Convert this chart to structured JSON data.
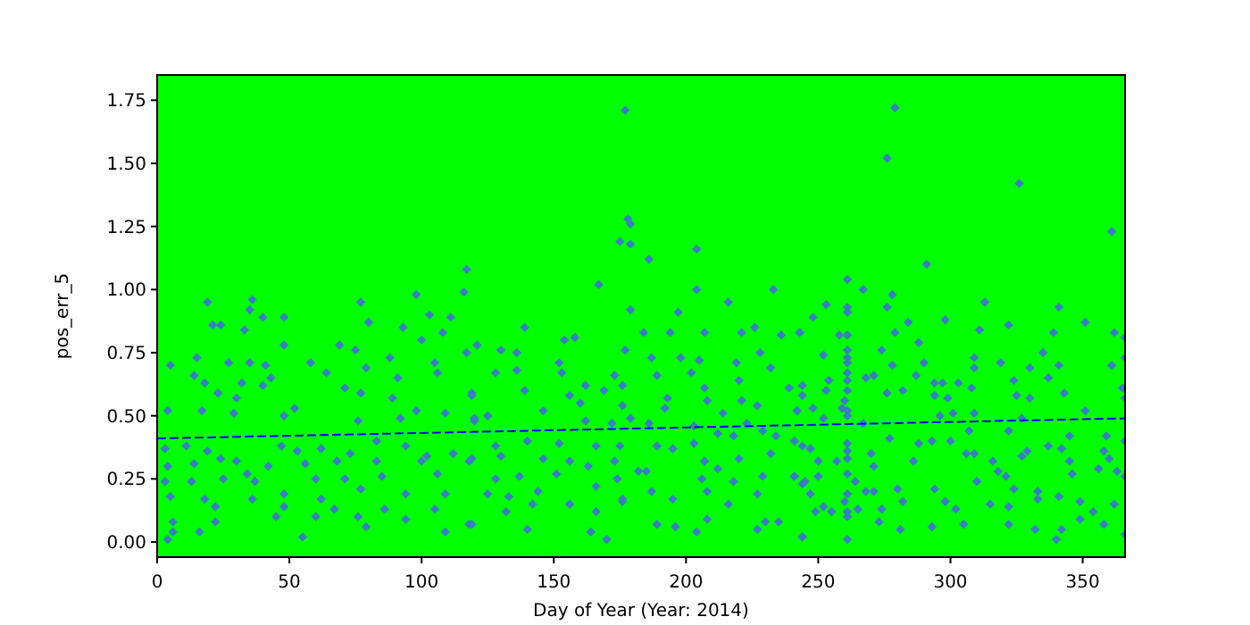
{
  "chart_data": {
    "type": "scatter",
    "xlabel": "Day of Year (Year: 2014)",
    "ylabel": "pos_err_5",
    "xlim": [
      0,
      366
    ],
    "ylim": [
      -0.06,
      1.85
    ],
    "xticks": [
      0,
      50,
      100,
      150,
      200,
      250,
      300,
      350
    ],
    "yticks": [
      {
        "value": 0,
        "label": "0.00"
      },
      {
        "value": 0.25,
        "label": "0.25"
      },
      {
        "value": 0.5,
        "label": "0.50"
      },
      {
        "value": 0.75,
        "label": "0.75"
      },
      {
        "value": 1,
        "label": "1.00"
      },
      {
        "value": 1.25,
        "label": "1.25"
      },
      {
        "value": 1.5,
        "label": "1.50"
      },
      {
        "value": 1.75,
        "label": "1.75"
      }
    ],
    "grid": false,
    "marker": "diamond",
    "series": [
      {
        "color": "#3b7dc4",
        "x": [
          117,
          116,
          98,
          36,
          19,
          21,
          24,
          77,
          103,
          111,
          48,
          35,
          40,
          80,
          93,
          33,
          48,
          69,
          100,
          108,
          5,
          15,
          27,
          35,
          41,
          58,
          75,
          88,
          105,
          117,
          14,
          18,
          32,
          43,
          64,
          79,
          91,
          106,
          119,
          23,
          30,
          40,
          71,
          77,
          89,
          98,
          4,
          17,
          29,
          48,
          52,
          76,
          92,
          109,
          120,
          11,
          3,
          19,
          24,
          30,
          47,
          53,
          62,
          73,
          83,
          94,
          102,
          112,
          118,
          4,
          14,
          34,
          42,
          56,
          68,
          83,
          100,
          13,
          3,
          25,
          37,
          60,
          71,
          85,
          106,
          5,
          18,
          36,
          48,
          62,
          77,
          94,
          109,
          22,
          48,
          67,
          86,
          105,
          6,
          22,
          45,
          60,
          76,
          94,
          118,
          16,
          6,
          79,
          109,
          4,
          55,
          177,
          178,
          179,
          175,
          179,
          204,
          186,
          167,
          204,
          233,
          216,
          179,
          197,
          139,
          184,
          194,
          207,
          221,
          226,
          154,
          158,
          121,
          130,
          177,
          236,
          243,
          136,
          152,
          187,
          198,
          205,
          219,
          228,
          128,
          136,
          153,
          173,
          189,
          202,
          220,
          232,
          162,
          176,
          207,
          139,
          119,
          156,
          169,
          193,
          208,
          221,
          239,
          146,
          160,
          176,
          192,
          214,
          227,
          242,
          125,
          162,
          172,
          179,
          186,
          203,
          223,
          120,
          128,
          140,
          152,
          166,
          175,
          189,
          203,
          212,
          218,
          229,
          234,
          244,
          119,
          130,
          146,
          156,
          173,
          185,
          195,
          207,
          220,
          232,
          128,
          137,
          151,
          163,
          174,
          182,
          206,
          212,
          218,
          229,
          241,
          125,
          133,
          144,
          156,
          166,
          176,
          187,
          195,
          208,
          216,
          227,
          244,
          132,
          142,
          156,
          166,
          176,
          208,
          230,
          119,
          140,
          164,
          170,
          189,
          196,
          204,
          227,
          235,
          244,
          279,
          276,
          326,
          361,
          291,
          261,
          267,
          278,
          313,
          253,
          276,
          261,
          261,
          248,
          284,
          298,
          311,
          341,
          351,
          362,
          243,
          258,
          261,
          279,
          322,
          339,
          366,
          261,
          274,
          288,
          309,
          335,
          261,
          252,
          278,
          290,
          319,
          341,
          366,
          261,
          261,
          287,
          309,
          330,
          361,
          261,
          268,
          271,
          294,
          297,
          303,
          324,
          337,
          244,
          254,
          261,
          244,
          253,
          276,
          282,
          294,
          299,
          308,
          325,
          330,
          343,
          366,
          365,
          260,
          259,
          261,
          242,
          248,
          267,
          296,
          301,
          309,
          327,
          351,
          252,
          261,
          277,
          288,
          293,
          300,
          307,
          322,
          337,
          345,
          359,
          366,
          241,
          247,
          257,
          261,
          261,
          261,
          270,
          286,
          306,
          309,
          316,
          329,
          342,
          345,
          358,
          360,
          250,
          241,
          245,
          250,
          261,
          264,
          271,
          271,
          280,
          294,
          310,
          318,
          321,
          324,
          327,
          333,
          346,
          356,
          363,
          366,
          247,
          261,
          260,
          268,
          282,
          298,
          302,
          315,
          322,
          333,
          341,
          349,
          362,
          249,
          252,
          255,
          261,
          261,
          265,
          274,
          354,
          273,
          281,
          293,
          305,
          322,
          332,
          342,
          349,
          358,
          244,
          261,
          340,
          366
        ],
        "values": [
          1.08,
          0.99,
          0.98,
          0.96,
          0.95,
          0.86,
          0.86,
          0.95,
          0.9,
          0.89,
          0.89,
          0.92,
          0.89,
          0.87,
          0.85,
          0.84,
          0.78,
          0.78,
          0.8,
          0.83,
          0.7,
          0.73,
          0.71,
          0.71,
          0.7,
          0.71,
          0.76,
          0.73,
          0.71,
          0.75,
          0.66,
          0.63,
          0.63,
          0.65,
          0.67,
          0.69,
          0.65,
          0.67,
          0.58,
          0.59,
          0.57,
          0.62,
          0.61,
          0.59,
          0.57,
          0.52,
          0.52,
          0.52,
          0.51,
          0.5,
          0.53,
          0.48,
          0.49,
          0.51,
          0.49,
          0.38,
          0.37,
          0.36,
          0.33,
          0.32,
          0.38,
          0.36,
          0.37,
          0.35,
          0.4,
          0.38,
          0.34,
          0.35,
          0.32,
          0.3,
          0.31,
          0.27,
          0.3,
          0.31,
          0.32,
          0.32,
          0.32,
          0.24,
          0.24,
          0.25,
          0.24,
          0.25,
          0.25,
          0.26,
          0.27,
          0.18,
          0.17,
          0.17,
          0.19,
          0.17,
          0.21,
          0.19,
          0.19,
          0.14,
          0.14,
          0.13,
          0.13,
          0.13,
          0.08,
          0.08,
          0.1,
          0.1,
          0.1,
          0.09,
          0.07,
          0.04,
          0.04,
          0.06,
          0.04,
          0.01,
          0.02,
          1.71,
          1.28,
          1.26,
          1.19,
          1.18,
          1.16,
          1.12,
          1.02,
          1.0,
          1.0,
          0.95,
          0.92,
          0.91,
          0.85,
          0.83,
          0.83,
          0.83,
          0.83,
          0.85,
          0.8,
          0.81,
          0.78,
          0.76,
          0.76,
          0.82,
          0.83,
          0.75,
          0.71,
          0.73,
          0.73,
          0.72,
          0.71,
          0.75,
          0.67,
          0.68,
          0.67,
          0.66,
          0.66,
          0.67,
          0.64,
          0.69,
          0.62,
          0.62,
          0.61,
          0.6,
          0.59,
          0.58,
          0.6,
          0.57,
          0.56,
          0.56,
          0.61,
          0.52,
          0.55,
          0.54,
          0.53,
          0.51,
          0.54,
          0.52,
          0.5,
          0.48,
          0.47,
          0.49,
          0.47,
          0.46,
          0.47,
          0.48,
          0.38,
          0.4,
          0.39,
          0.38,
          0.38,
          0.38,
          0.39,
          0.43,
          0.42,
          0.44,
          0.42,
          0.38,
          0.33,
          0.34,
          0.33,
          0.32,
          0.32,
          0.28,
          0.37,
          0.32,
          0.33,
          0.35,
          0.25,
          0.26,
          0.27,
          0.3,
          0.25,
          0.28,
          0.25,
          0.29,
          0.24,
          0.26,
          0.26,
          0.19,
          0.18,
          0.2,
          0.15,
          0.22,
          0.17,
          0.2,
          0.17,
          0.2,
          0.15,
          0.19,
          0.23,
          0.12,
          0.15,
          0.15,
          0.12,
          0.16,
          0.09,
          0.08,
          0.07,
          0.05,
          0.04,
          0.01,
          0.07,
          0.06,
          0.04,
          0.05,
          0.08,
          0.02,
          1.72,
          1.52,
          1.42,
          1.23,
          1.1,
          1.04,
          1.0,
          0.98,
          0.95,
          0.94,
          0.93,
          0.93,
          0.91,
          0.89,
          0.87,
          0.88,
          0.84,
          0.93,
          0.87,
          0.83,
          0.83,
          0.82,
          0.82,
          0.83,
          0.86,
          0.83,
          0.81,
          0.76,
          0.76,
          0.79,
          0.73,
          0.75,
          0.73,
          0.74,
          0.7,
          0.71,
          0.71,
          0.7,
          0.73,
          0.71,
          0.67,
          0.66,
          0.69,
          0.69,
          0.7,
          0.64,
          0.65,
          0.66,
          0.63,
          0.63,
          0.63,
          0.64,
          0.65,
          0.62,
          0.64,
          0.6,
          0.58,
          0.6,
          0.59,
          0.6,
          0.58,
          0.57,
          0.61,
          0.58,
          0.57,
          0.59,
          0.57,
          0.61,
          0.56,
          0.53,
          0.52,
          0.52,
          0.53,
          0.47,
          0.5,
          0.51,
          0.51,
          0.49,
          0.52,
          0.49,
          0.5,
          0.41,
          0.39,
          0.4,
          0.4,
          0.44,
          0.44,
          0.38,
          0.42,
          0.42,
          0.4,
          0.4,
          0.37,
          0.32,
          0.39,
          0.36,
          0.33,
          0.35,
          0.32,
          0.35,
          0.35,
          0.32,
          0.36,
          0.37,
          0.32,
          0.36,
          0.33,
          0.32,
          0.26,
          0.24,
          0.26,
          0.27,
          0.24,
          0.3,
          0.2,
          0.21,
          0.21,
          0.24,
          0.28,
          0.26,
          0.21,
          0.34,
          0.2,
          0.27,
          0.29,
          0.28,
          0.26,
          0.19,
          0.19,
          0.16,
          0.2,
          0.16,
          0.16,
          0.13,
          0.15,
          0.14,
          0.17,
          0.18,
          0.16,
          0.15,
          0.12,
          0.14,
          0.12,
          0.12,
          0.1,
          0.13,
          0.13,
          0.12,
          0.08,
          0.05,
          0.06,
          0.07,
          0.07,
          0.05,
          0.05,
          0.09,
          0.07,
          0.02,
          0.01,
          0.01,
          0.03
        ]
      },
      {
        "type": "line",
        "color": "#0000ff",
        "line_style": "dashed",
        "marker": "none",
        "x": [
          0,
          366
        ],
        "values": [
          0.41,
          0.49
        ]
      }
    ]
  }
}
